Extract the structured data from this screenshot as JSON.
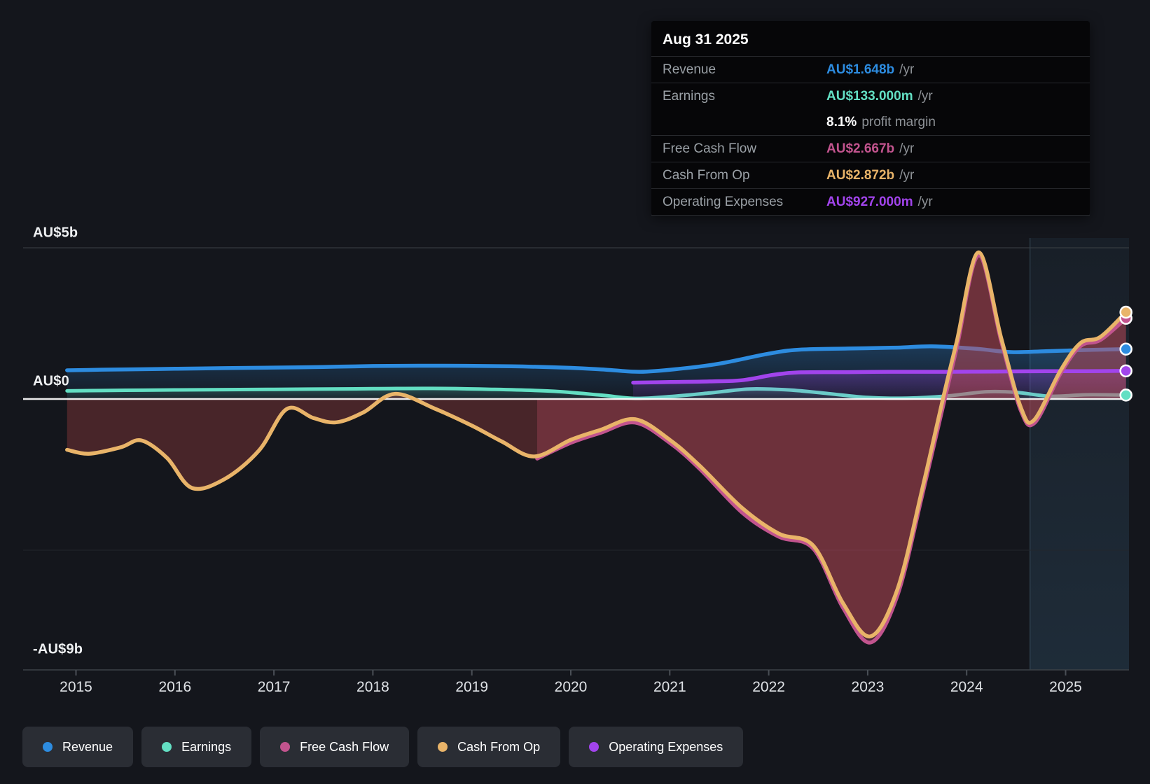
{
  "tooltip": {
    "date": "Aug 31 2025",
    "rows": [
      {
        "label": "Revenue",
        "value": "AU$1.648b",
        "suffix": "/yr",
        "color": "#2d8ce0",
        "no_border": false
      },
      {
        "label": "Earnings",
        "value": "AU$133.000m",
        "suffix": "/yr",
        "color": "#63dfc3",
        "no_border": false
      },
      {
        "label": "",
        "value": "8.1%",
        "suffix": "profit margin",
        "color": "#ffffff",
        "no_border": true
      },
      {
        "label": "Free Cash Flow",
        "value": "AU$2.667b",
        "suffix": "/yr",
        "color": "#c2548e",
        "no_border": false
      },
      {
        "label": "Cash From Op",
        "value": "AU$2.872b",
        "suffix": "/yr",
        "color": "#e9b469",
        "no_border": false
      },
      {
        "label": "Operating Expenses",
        "value": "AU$927.000m",
        "suffix": "/yr",
        "color": "#a244ec",
        "no_border": false
      }
    ]
  },
  "legend": [
    {
      "label": "Revenue",
      "color": "#2d8ce0"
    },
    {
      "label": "Earnings",
      "color": "#63dfc3"
    },
    {
      "label": "Free Cash Flow",
      "color": "#c2548e"
    },
    {
      "label": "Cash From Op",
      "color": "#e9b469"
    },
    {
      "label": "Operating Expenses",
      "color": "#a244ec"
    }
  ],
  "axis": {
    "y_labels": [
      {
        "text": "AU$5b",
        "value": 5
      },
      {
        "text": "AU$0",
        "value": 0
      },
      {
        "text": "-AU$9b",
        "value": -9
      }
    ],
    "x_ticks": [
      2015,
      2016,
      2017,
      2018,
      2019,
      2020,
      2021,
      2022,
      2023,
      2024,
      2025
    ]
  },
  "chart_data": {
    "type": "area",
    "x_unit": "year",
    "xlim": [
      2014.75,
      2025.66
    ],
    "ylim": [
      -9,
      5
    ],
    "y_currency": "AU$b",
    "grid_values": [
      5,
      0,
      -5,
      -9
    ],
    "highlight_from_year": 2024.64,
    "legend_position": "bottom",
    "series": [
      {
        "name": "Revenue",
        "color": "#2d8ce0",
        "points": [
          [
            2014.91,
            0.95
          ],
          [
            2015.5,
            0.98
          ],
          [
            2016,
            1.0
          ],
          [
            2016.5,
            1.02
          ],
          [
            2017,
            1.04
          ],
          [
            2017.5,
            1.06
          ],
          [
            2018,
            1.09
          ],
          [
            2018.7,
            1.1
          ],
          [
            2019.4,
            1.08
          ],
          [
            2020,
            1.03
          ],
          [
            2020.35,
            0.97
          ],
          [
            2020.7,
            0.9
          ],
          [
            2021.1,
            1.0
          ],
          [
            2021.5,
            1.17
          ],
          [
            2022,
            1.5
          ],
          [
            2022.3,
            1.63
          ],
          [
            2022.8,
            1.67
          ],
          [
            2023.3,
            1.7
          ],
          [
            2023.65,
            1.74
          ],
          [
            2024.1,
            1.66
          ],
          [
            2024.45,
            1.55
          ],
          [
            2024.8,
            1.58
          ],
          [
            2025.2,
            1.62
          ],
          [
            2025.61,
            1.65
          ]
        ]
      },
      {
        "name": "Earnings",
        "color": "#63dfc3",
        "points": [
          [
            2014.91,
            0.27
          ],
          [
            2015.5,
            0.29
          ],
          [
            2016,
            0.3
          ],
          [
            2017,
            0.32
          ],
          [
            2018,
            0.34
          ],
          [
            2018.6,
            0.35
          ],
          [
            2019.2,
            0.32
          ],
          [
            2019.8,
            0.26
          ],
          [
            2020.3,
            0.13
          ],
          [
            2020.65,
            0.02
          ],
          [
            2021,
            0.08
          ],
          [
            2021.4,
            0.2
          ],
          [
            2021.8,
            0.33
          ],
          [
            2022.2,
            0.3
          ],
          [
            2022.6,
            0.18
          ],
          [
            2023,
            0.05
          ],
          [
            2023.4,
            0.03
          ],
          [
            2023.8,
            0.1
          ],
          [
            2024.2,
            0.24
          ],
          [
            2024.5,
            0.22
          ],
          [
            2024.85,
            0.09
          ],
          [
            2025.2,
            0.14
          ],
          [
            2025.61,
            0.13
          ]
        ]
      },
      {
        "name": "Operating Expenses",
        "color": "#a244ec",
        "points": [
          [
            2020.63,
            0.54
          ],
          [
            2021,
            0.56
          ],
          [
            2021.4,
            0.58
          ],
          [
            2021.73,
            0.62
          ],
          [
            2022.05,
            0.8
          ],
          [
            2022.3,
            0.88
          ],
          [
            2022.8,
            0.89
          ],
          [
            2023.3,
            0.9
          ],
          [
            2023.8,
            0.9
          ],
          [
            2024.3,
            0.91
          ],
          [
            2024.8,
            0.92
          ],
          [
            2025.2,
            0.92
          ],
          [
            2025.61,
            0.93
          ]
        ]
      },
      {
        "name": "Free Cash Flow",
        "color": "#c2548e",
        "points": [
          [
            2019.66,
            -1.97
          ],
          [
            2020,
            -1.45
          ],
          [
            2020.3,
            -1.12
          ],
          [
            2020.65,
            -0.78
          ],
          [
            2021,
            -1.45
          ],
          [
            2021.3,
            -2.3
          ],
          [
            2021.73,
            -3.75
          ],
          [
            2022.1,
            -4.55
          ],
          [
            2022.45,
            -4.95
          ],
          [
            2022.75,
            -6.9
          ],
          [
            2023.03,
            -8.05
          ],
          [
            2023.3,
            -6.5
          ],
          [
            2023.55,
            -3.2
          ],
          [
            2023.75,
            -0.4
          ],
          [
            2023.9,
            1.7
          ],
          [
            2024.12,
            4.75
          ],
          [
            2024.35,
            1.9
          ],
          [
            2024.55,
            -0.4
          ],
          [
            2024.69,
            -0.78
          ],
          [
            2024.95,
            0.85
          ],
          [
            2025.15,
            1.75
          ],
          [
            2025.35,
            1.95
          ],
          [
            2025.61,
            2.67
          ]
        ]
      },
      {
        "name": "Cash From Op",
        "color": "#e9b469",
        "points": [
          [
            2014.91,
            -1.68
          ],
          [
            2015.13,
            -1.81
          ],
          [
            2015.45,
            -1.6
          ],
          [
            2015.66,
            -1.37
          ],
          [
            2015.92,
            -1.95
          ],
          [
            2016.17,
            -2.94
          ],
          [
            2016.5,
            -2.65
          ],
          [
            2016.85,
            -1.7
          ],
          [
            2017.13,
            -0.33
          ],
          [
            2017.4,
            -0.63
          ],
          [
            2017.63,
            -0.77
          ],
          [
            2017.9,
            -0.45
          ],
          [
            2018.22,
            0.17
          ],
          [
            2018.62,
            -0.31
          ],
          [
            2019,
            -0.88
          ],
          [
            2019.3,
            -1.4
          ],
          [
            2019.63,
            -1.9
          ],
          [
            2020,
            -1.35
          ],
          [
            2020.3,
            -1.02
          ],
          [
            2020.65,
            -0.67
          ],
          [
            2021,
            -1.35
          ],
          [
            2021.3,
            -2.2
          ],
          [
            2021.73,
            -3.6
          ],
          [
            2022.1,
            -4.45
          ],
          [
            2022.45,
            -4.85
          ],
          [
            2022.75,
            -6.75
          ],
          [
            2023.03,
            -7.85
          ],
          [
            2023.3,
            -6.3
          ],
          [
            2023.55,
            -3.0
          ],
          [
            2023.76,
            0.0
          ],
          [
            2023.9,
            1.9
          ],
          [
            2024.12,
            4.85
          ],
          [
            2024.35,
            2.0
          ],
          [
            2024.55,
            -0.3
          ],
          [
            2024.68,
            -0.7
          ],
          [
            2024.95,
            0.95
          ],
          [
            2025.15,
            1.85
          ],
          [
            2025.35,
            2.05
          ],
          [
            2025.61,
            2.87
          ]
        ]
      }
    ]
  }
}
